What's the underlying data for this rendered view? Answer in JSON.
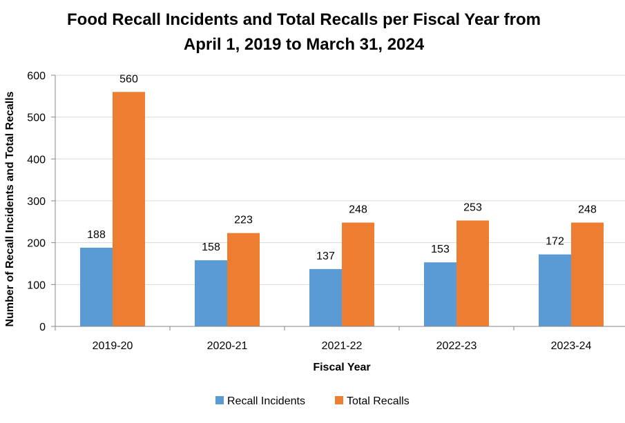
{
  "chart_data": {
    "type": "bar",
    "title_lines": [
      "Food Recall Incidents and Total Recalls per Fiscal Year from",
      "April 1, 2019 to March 31, 2024"
    ],
    "xlabel": "Fiscal Year",
    "ylabel": "Number of Recall Incidents and Total Recalls",
    "categories": [
      "2019-20",
      "2020-21",
      "2021-22",
      "2022-23",
      "2023-24"
    ],
    "series": [
      {
        "name": "Recall Incidents",
        "values": [
          188,
          158,
          137,
          153,
          172
        ],
        "color": "#5b9bd5"
      },
      {
        "name": "Total Recalls",
        "values": [
          560,
          223,
          248,
          253,
          248
        ],
        "color": "#ed7d31"
      }
    ],
    "ylim": [
      0,
      600
    ],
    "yticks": [
      0,
      100,
      200,
      300,
      400,
      500,
      600
    ],
    "grid": true,
    "legend": "bottom",
    "data_labels": true
  }
}
